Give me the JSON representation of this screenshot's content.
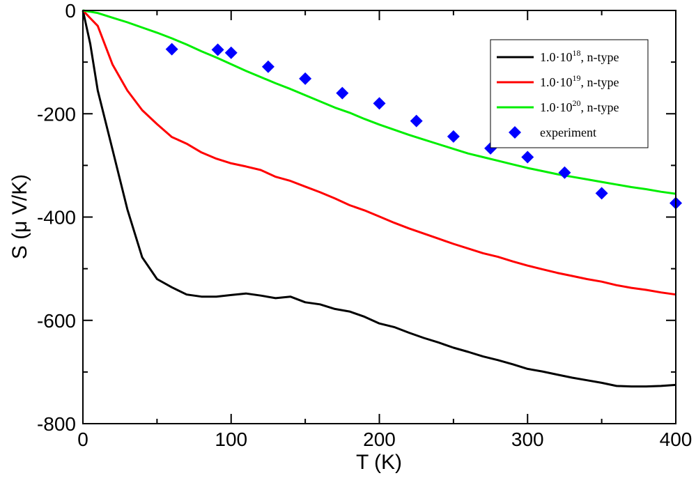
{
  "chart_data": {
    "type": "line",
    "xlabel": "T (K)",
    "ylabel": "S (μ V/K)",
    "xlim": [
      0,
      400
    ],
    "ylim": [
      -800,
      0
    ],
    "xticks": [
      0,
      100,
      200,
      300,
      400
    ],
    "yticks": [
      0,
      -200,
      -400,
      -600,
      -800
    ],
    "xtick_labels": [
      "0",
      "100",
      "200",
      "300",
      "400"
    ],
    "ytick_labels": [
      "0",
      "-200",
      "-400",
      "-600",
      "-800"
    ],
    "grid": false,
    "legend_position": "top-right",
    "series": [
      {
        "name": "1.0·10¹⁸, n-type",
        "legend_base": "1.0·10",
        "legend_exp": "18",
        "legend_suffix": ", n-type",
        "style": "line",
        "color": "#000000",
        "x": [
          0,
          5,
          10,
          20,
          30,
          40,
          50,
          60,
          70,
          80,
          90,
          100,
          110,
          120,
          130,
          140,
          150,
          160,
          170,
          180,
          190,
          200,
          210,
          220,
          230,
          240,
          250,
          260,
          270,
          280,
          290,
          300,
          310,
          320,
          330,
          340,
          350,
          360,
          370,
          380,
          390,
          400
        ],
        "y": [
          0,
          -65,
          -155,
          -270,
          -385,
          -478,
          -520,
          -536,
          -550,
          -554,
          -554,
          -551,
          -548,
          -552,
          -557,
          -554,
          -565,
          -569,
          -578,
          -583,
          -593,
          -606,
          -613,
          -624,
          -634,
          -643,
          -653,
          -661,
          -670,
          -677,
          -685,
          -694,
          -699,
          -705,
          -711,
          -716,
          -721,
          -727,
          -728,
          -728,
          -727,
          -725
        ]
      },
      {
        "name": "1.0·10¹⁹, n-type",
        "legend_base": "1.0·10",
        "legend_exp": "19",
        "legend_suffix": ", n-type",
        "style": "line",
        "color": "#ff0000",
        "x": [
          0,
          5,
          10,
          20,
          30,
          40,
          50,
          60,
          70,
          80,
          90,
          100,
          110,
          120,
          130,
          140,
          150,
          160,
          170,
          180,
          190,
          200,
          210,
          220,
          230,
          240,
          250,
          260,
          270,
          280,
          290,
          300,
          310,
          320,
          330,
          340,
          350,
          360,
          370,
          380,
          390,
          400
        ],
        "y": [
          0,
          -15,
          -30,
          -105,
          -155,
          -193,
          -220,
          -245,
          -258,
          -275,
          -287,
          -296,
          -302,
          -309,
          -322,
          -330,
          -341,
          -352,
          -364,
          -377,
          -387,
          -399,
          -411,
          -422,
          -432,
          -442,
          -452,
          -461,
          -470,
          -477,
          -486,
          -494,
          -501,
          -508,
          -514,
          -520,
          -525,
          -532,
          -537,
          -541,
          -546,
          -550
        ]
      },
      {
        "name": "1.0·10²⁰, n-type",
        "legend_base": "1.0·10",
        "legend_exp": "20",
        "legend_suffix": ", n-type",
        "style": "line",
        "color": "#00ee00",
        "x": [
          0,
          10,
          20,
          30,
          40,
          50,
          60,
          70,
          80,
          90,
          100,
          110,
          120,
          130,
          140,
          150,
          160,
          170,
          180,
          190,
          200,
          210,
          220,
          230,
          240,
          250,
          260,
          270,
          280,
          290,
          300,
          310,
          320,
          330,
          340,
          350,
          360,
          370,
          380,
          390,
          400
        ],
        "y": [
          0,
          -5,
          -14,
          -23,
          -33,
          -43,
          -54,
          -66,
          -79,
          -91,
          -104,
          -117,
          -129,
          -141,
          -152,
          -164,
          -176,
          -188,
          -198,
          -210,
          -221,
          -231,
          -241,
          -250,
          -259,
          -268,
          -277,
          -284,
          -291,
          -298,
          -305,
          -311,
          -317,
          -322,
          -327,
          -332,
          -337,
          -342,
          -346,
          -351,
          -355
        ]
      },
      {
        "name": "experiment",
        "legend_label": "experiment",
        "style": "marker",
        "marker": "diamond",
        "color": "#0000ff",
        "x": [
          60,
          91,
          100,
          125,
          150,
          175,
          200,
          225,
          250,
          275,
          300,
          325,
          350,
          400
        ],
        "y": [
          -75,
          -76,
          -82,
          -109,
          -132,
          -160,
          -180,
          -214,
          -244,
          -267,
          -284,
          -314,
          -354,
          -373
        ]
      }
    ]
  }
}
